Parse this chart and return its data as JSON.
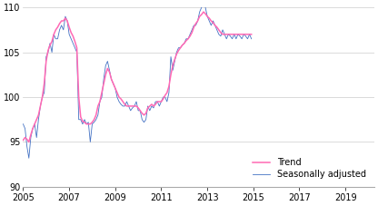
{
  "title": "",
  "ylabel": "",
  "xlabel": "",
  "ylim": [
    90,
    110
  ],
  "xlim_start": 2005.0,
  "xlim_end": 2020.25,
  "yticks": [
    90,
    95,
    100,
    105,
    110
  ],
  "xtick_years": [
    2005,
    2007,
    2009,
    2011,
    2013,
    2015,
    2017,
    2019
  ],
  "trend_color": "#ff69b4",
  "sa_color": "#4472c4",
  "trend_label": "Trend",
  "sa_label": "Seasonally adjusted",
  "legend_fontsize": 7,
  "tick_fontsize": 7,
  "figwidth": 4.16,
  "figheight": 2.27,
  "dpi": 100,
  "bg_color": "#ffffff",
  "grid_color": "#cccccc",
  "sa_data": [
    97.0,
    96.5,
    94.5,
    93.2,
    95.5,
    96.5,
    97.0,
    95.5,
    97.5,
    99.0,
    100.0,
    100.5,
    104.5,
    105.0,
    106.0,
    105.0,
    107.0,
    106.5,
    106.5,
    107.5,
    108.0,
    107.5,
    109.0,
    108.5,
    107.0,
    106.5,
    106.0,
    105.5,
    105.0,
    97.5,
    97.5,
    97.0,
    97.5,
    97.0,
    97.2,
    95.0,
    97.0,
    97.2,
    97.5,
    98.0,
    99.5,
    100.0,
    102.0,
    103.5,
    104.0,
    103.0,
    102.0,
    101.5,
    101.0,
    100.0,
    99.5,
    99.2,
    99.0,
    99.0,
    99.5,
    99.0,
    98.5,
    98.8,
    99.0,
    99.5,
    98.5,
    98.5,
    97.5,
    97.2,
    97.5,
    99.0,
    98.5,
    99.0,
    98.8,
    99.5,
    99.5,
    99.0,
    99.5,
    100.0,
    100.0,
    99.5,
    100.5,
    104.5,
    103.0,
    104.0,
    105.0,
    105.5,
    105.5,
    105.8,
    106.0,
    106.5,
    106.5,
    107.0,
    107.5,
    108.0,
    108.0,
    108.5,
    109.5,
    110.0,
    110.5,
    110.0,
    109.0,
    108.5,
    108.0,
    108.5,
    108.0,
    107.5,
    107.0,
    106.8,
    107.5,
    107.0,
    106.5,
    107.0,
    106.8,
    106.5,
    107.0,
    106.5,
    107.0,
    106.8,
    106.5,
    107.0,
    106.8,
    106.5,
    107.0,
    106.5
  ],
  "trend_data": [
    95.2,
    95.5,
    95.3,
    95.0,
    95.8,
    96.5,
    97.0,
    97.5,
    98.0,
    99.0,
    100.0,
    101.5,
    104.0,
    105.2,
    105.8,
    106.2,
    107.0,
    107.5,
    107.8,
    108.2,
    108.5,
    108.5,
    108.8,
    108.5,
    107.8,
    107.2,
    106.8,
    106.2,
    105.5,
    100.0,
    97.8,
    97.3,
    97.2,
    97.0,
    97.0,
    97.0,
    97.2,
    97.5,
    98.0,
    99.0,
    99.5,
    100.5,
    101.5,
    102.5,
    103.2,
    102.8,
    102.0,
    101.5,
    101.0,
    100.5,
    100.0,
    99.8,
    99.5,
    99.2,
    99.0,
    99.0,
    99.0,
    99.0,
    99.0,
    99.0,
    98.8,
    98.5,
    98.2,
    98.0,
    98.2,
    98.8,
    99.0,
    99.2,
    99.0,
    99.2,
    99.5,
    99.5,
    99.5,
    99.8,
    100.2,
    100.5,
    101.2,
    102.5,
    103.5,
    104.2,
    104.8,
    105.2,
    105.5,
    105.8,
    106.0,
    106.3,
    106.5,
    106.8,
    107.2,
    107.8,
    108.2,
    108.5,
    109.0,
    109.2,
    109.5,
    109.3,
    109.0,
    108.8,
    108.5,
    108.3,
    108.0,
    107.8,
    107.5,
    107.2,
    107.0,
    107.0,
    107.0,
    107.0,
    107.0,
    107.0,
    107.0,
    107.0,
    107.0,
    107.0,
    107.0,
    107.0,
    107.0,
    107.0,
    107.0,
    107.0
  ]
}
